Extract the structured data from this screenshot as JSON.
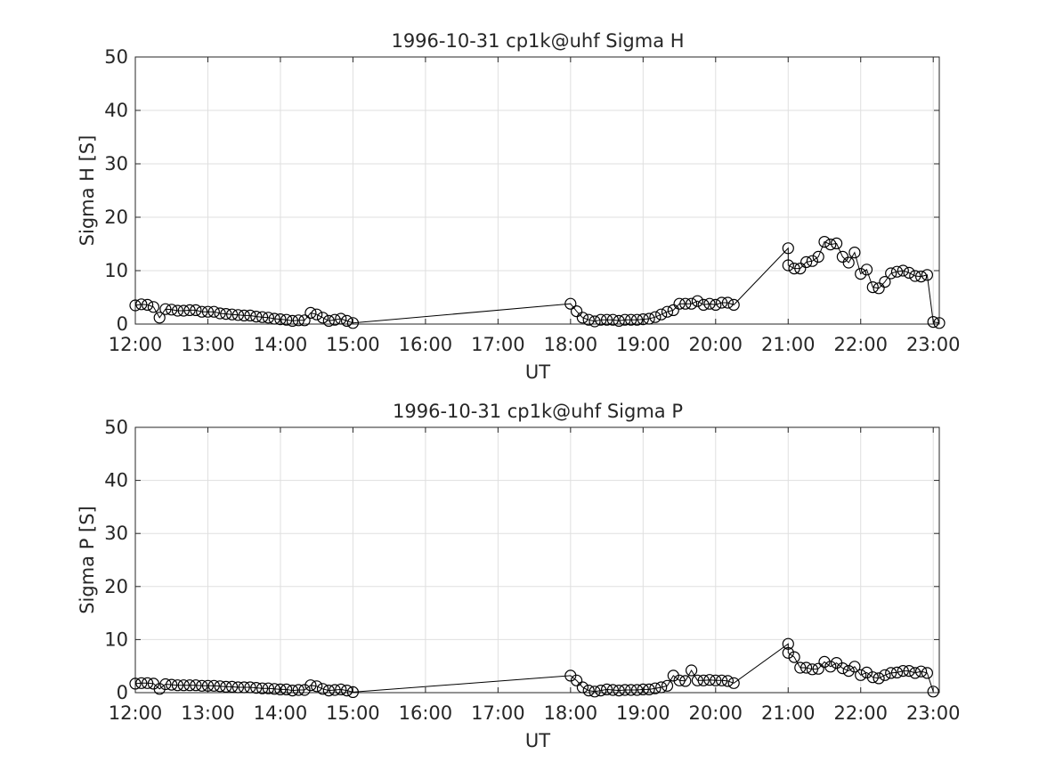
{
  "chart_data": [
    {
      "type": "line",
      "title": "1996-10-31  cp1k@uhf Sigma H",
      "xlabel": "UT",
      "ylabel": "Sigma H [S]",
      "xlim": [
        "12:00",
        "23:05"
      ],
      "ylim": [
        0,
        50
      ],
      "grid": true,
      "marker": "open-circle",
      "line_color": "#000000",
      "x_ticks": [
        "12:00",
        "13:00",
        "14:00",
        "15:00",
        "16:00",
        "17:00",
        "18:00",
        "19:00",
        "20:00",
        "21:00",
        "22:00",
        "23:00"
      ],
      "y_ticks": [
        "0",
        "10",
        "20",
        "30",
        "40",
        "50"
      ],
      "series": [
        {
          "x": [
            "12:00",
            "12:05",
            "12:10",
            "12:15",
            "12:20",
            "12:25",
            "12:30",
            "12:35",
            "12:40",
            "12:45",
            "12:50",
            "12:55",
            "13:00",
            "13:05",
            "13:10",
            "13:15",
            "13:20",
            "13:25",
            "13:30",
            "13:35",
            "13:40",
            "13:45",
            "13:50",
            "13:55",
            "14:00",
            "14:05",
            "14:10",
            "14:15",
            "14:20",
            "14:25",
            "14:30",
            "14:35",
            "14:40",
            "14:45",
            "14:50",
            "14:55",
            "15:00",
            "18:00",
            "18:05",
            "18:10",
            "18:15",
            "18:20",
            "18:25",
            "18:30",
            "18:35",
            "18:40",
            "18:45",
            "18:50",
            "18:55",
            "19:00",
            "19:05",
            "19:10",
            "19:15",
            "19:20",
            "19:25",
            "19:30",
            "19:35",
            "19:40",
            "19:45",
            "19:50",
            "19:55",
            "20:00",
            "20:05",
            "20:10",
            "20:15",
            "21:00",
            "21:00",
            "21:05",
            "21:10",
            "21:15",
            "21:20",
            "21:25",
            "21:30",
            "21:35",
            "21:40",
            "21:45",
            "21:50",
            "21:55",
            "22:00",
            "22:05",
            "22:10",
            "22:15",
            "22:20",
            "22:25",
            "22:30",
            "22:35",
            "22:40",
            "22:45",
            "22:50",
            "22:55",
            "23:00",
            "23:05"
          ],
          "values": [
            3.5,
            3.7,
            3.6,
            3.2,
            1.2,
            2.8,
            2.7,
            2.5,
            2.5,
            2.6,
            2.6,
            2.3,
            2.3,
            2.3,
            2.0,
            1.9,
            1.8,
            1.7,
            1.6,
            1.6,
            1.4,
            1.3,
            1.2,
            1.0,
            0.9,
            0.8,
            0.6,
            0.7,
            0.7,
            2.1,
            1.8,
            1.2,
            0.6,
            0.8,
            1.0,
            0.6,
            0.2,
            3.8,
            2.4,
            1.2,
            0.8,
            0.5,
            0.8,
            0.8,
            0.8,
            0.6,
            0.8,
            0.8,
            0.8,
            0.9,
            1.0,
            1.3,
            1.8,
            2.3,
            2.6,
            3.8,
            3.8,
            3.8,
            4.3,
            3.6,
            3.8,
            3.6,
            4.0,
            4.0,
            3.6,
            14.2,
            11.0,
            10.4,
            10.4,
            11.6,
            11.8,
            12.6,
            15.4,
            14.9,
            15.1,
            12.6,
            11.5,
            13.4,
            9.4,
            10.2,
            6.9,
            6.7,
            7.9,
            9.5,
            9.8,
            10.0,
            9.6,
            9.0,
            8.9,
            9.2,
            0.4,
            0.2
          ]
        }
      ]
    },
    {
      "type": "line",
      "title": "1996-10-31  cp1k@uhf Sigma P",
      "xlabel": "UT",
      "ylabel": "Sigma P [S]",
      "xlim": [
        "12:00",
        "23:05"
      ],
      "ylim": [
        0,
        50
      ],
      "grid": true,
      "marker": "open-circle",
      "line_color": "#000000",
      "x_ticks": [
        "12:00",
        "13:00",
        "14:00",
        "15:00",
        "16:00",
        "17:00",
        "18:00",
        "19:00",
        "20:00",
        "21:00",
        "22:00",
        "23:00"
      ],
      "y_ticks": [
        "0",
        "10",
        "20",
        "30",
        "40",
        "50"
      ],
      "series": [
        {
          "x": [
            "12:00",
            "12:05",
            "12:10",
            "12:15",
            "12:20",
            "12:25",
            "12:30",
            "12:35",
            "12:40",
            "12:45",
            "12:50",
            "12:55",
            "13:00",
            "13:05",
            "13:10",
            "13:15",
            "13:20",
            "13:25",
            "13:30",
            "13:35",
            "13:40",
            "13:45",
            "13:50",
            "13:55",
            "14:00",
            "14:05",
            "14:10",
            "14:15",
            "14:20",
            "14:25",
            "14:30",
            "14:35",
            "14:40",
            "14:45",
            "14:50",
            "14:55",
            "15:00",
            "18:00",
            "18:05",
            "18:10",
            "18:15",
            "18:20",
            "18:25",
            "18:30",
            "18:35",
            "18:40",
            "18:45",
            "18:50",
            "18:55",
            "19:00",
            "19:05",
            "19:10",
            "19:15",
            "19:20",
            "19:25",
            "19:30",
            "19:35",
            "19:40",
            "19:45",
            "19:50",
            "19:55",
            "20:00",
            "20:05",
            "20:10",
            "20:15",
            "21:00",
            "21:00",
            "21:05",
            "21:10",
            "21:15",
            "21:20",
            "21:25",
            "21:30",
            "21:35",
            "21:40",
            "21:45",
            "21:50",
            "21:55",
            "22:00",
            "22:05",
            "22:10",
            "22:15",
            "22:20",
            "22:25",
            "22:30",
            "22:35",
            "22:40",
            "22:45",
            "22:50",
            "22:55",
            "23:00"
          ],
          "values": [
            1.7,
            1.8,
            1.8,
            1.7,
            0.7,
            1.6,
            1.5,
            1.4,
            1.4,
            1.4,
            1.4,
            1.3,
            1.3,
            1.3,
            1.2,
            1.1,
            1.1,
            1.0,
            1.0,
            1.0,
            0.9,
            0.8,
            0.8,
            0.7,
            0.6,
            0.6,
            0.4,
            0.5,
            0.5,
            1.4,
            1.2,
            0.7,
            0.4,
            0.5,
            0.6,
            0.4,
            0.1,
            3.2,
            2.3,
            1.0,
            0.4,
            0.2,
            0.4,
            0.6,
            0.5,
            0.4,
            0.5,
            0.5,
            0.5,
            0.6,
            0.6,
            0.8,
            1.0,
            1.3,
            3.2,
            2.3,
            2.2,
            4.2,
            2.3,
            2.3,
            2.4,
            2.3,
            2.3,
            2.2,
            1.8,
            9.2,
            7.5,
            6.7,
            4.7,
            4.7,
            4.4,
            4.5,
            5.8,
            4.9,
            5.6,
            4.6,
            4.1,
            4.9,
            3.3,
            3.8,
            2.9,
            2.7,
            3.3,
            3.7,
            3.8,
            4.1,
            4.1,
            3.7,
            4.0,
            3.7,
            0.2
          ]
        }
      ]
    }
  ]
}
